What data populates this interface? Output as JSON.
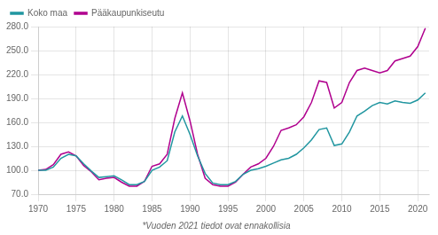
{
  "chart_data": {
    "type": "line",
    "footnote": "*Vuoden 2021 tiedot ovat ennakollisia",
    "x": [
      1970,
      1971,
      1972,
      1973,
      1974,
      1975,
      1976,
      1977,
      1978,
      1979,
      1980,
      1981,
      1982,
      1983,
      1984,
      1985,
      1986,
      1987,
      1988,
      1989,
      1990,
      1991,
      1992,
      1993,
      1994,
      1995,
      1996,
      1997,
      1998,
      1999,
      2000,
      2001,
      2002,
      2003,
      2004,
      2005,
      2006,
      2007,
      2008,
      2009,
      2010,
      2011,
      2012,
      2013,
      2014,
      2015,
      2016,
      2017,
      2018,
      2019,
      2020,
      2021
    ],
    "series": [
      {
        "name": "Koko maa",
        "color": "#2196a0",
        "values": [
          100,
          100,
          104,
          115,
          120,
          118,
          108,
          99,
          91,
          92,
          93,
          88,
          82,
          82,
          86,
          100,
          104,
          112,
          148,
          168,
          145,
          118,
          96,
          84,
          82,
          82,
          86,
          95,
          100,
          102,
          105,
          109,
          113,
          115,
          120,
          128,
          138,
          151,
          153,
          131,
          133,
          148,
          168,
          174,
          181,
          185,
          183,
          187,
          185,
          184,
          188,
          197
        ]
      },
      {
        "name": "Pääkaupunkiseutu",
        "color": "#b0008e",
        "values": [
          100,
          101,
          107,
          120,
          123,
          118,
          106,
          98,
          88,
          90,
          91,
          85,
          80,
          80,
          86,
          105,
          108,
          120,
          165,
          197,
          162,
          120,
          90,
          82,
          80,
          80,
          85,
          95,
          104,
          108,
          115,
          130,
          150,
          153,
          157,
          167,
          185,
          212,
          210,
          178,
          185,
          210,
          225,
          228,
          225,
          222,
          225,
          237,
          240,
          243,
          255,
          278
        ]
      }
    ],
    "xlim": [
      1970,
      2021.5
    ],
    "xticks": [
      1970,
      1975,
      1980,
      1985,
      1990,
      1995,
      2000,
      2005,
      2010,
      2015,
      2020
    ],
    "ylim": [
      70,
      280
    ],
    "yticks": [
      {
        "value": 70,
        "label": "70.0"
      },
      {
        "value": 100,
        "label": "100.0"
      },
      {
        "value": 130,
        "label": "130.0"
      },
      {
        "value": 160,
        "label": "160.0"
      },
      {
        "value": 190,
        "label": "190.0"
      },
      {
        "value": 220,
        "label": "220.0"
      },
      {
        "value": 250,
        "label": "250.0"
      },
      {
        "value": 280,
        "label": "280.0"
      }
    ],
    "grid": true,
    "legend": "upper left",
    "marker": "none"
  }
}
